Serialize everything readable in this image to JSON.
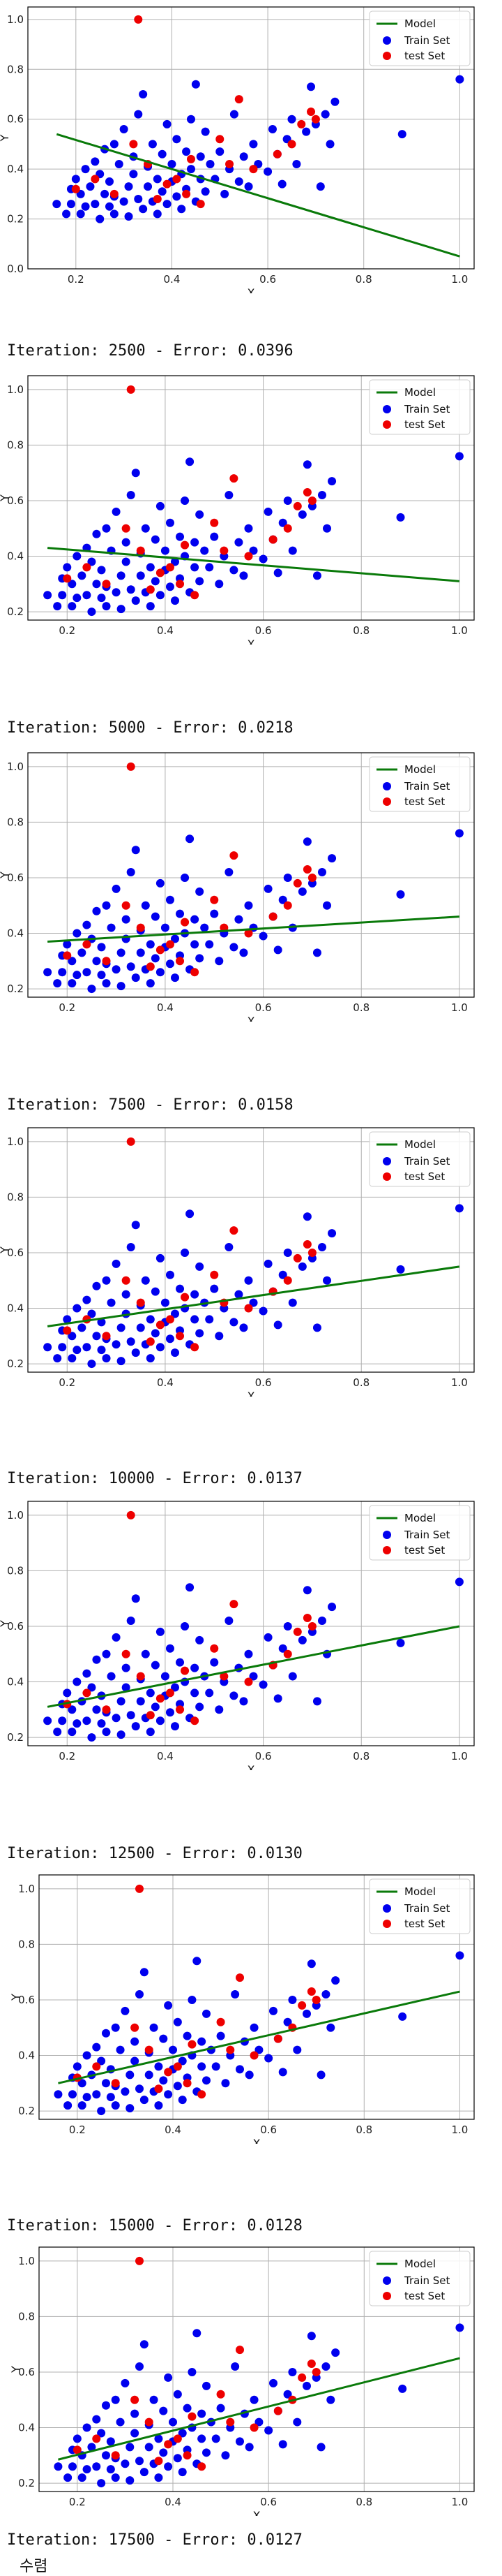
{
  "chart_data": [
    {
      "type": "scatter",
      "xlabel": "X",
      "ylabel": "Y",
      "xlim": [
        0.1,
        1.03
      ],
      "ylim": [
        0.0,
        1.05
      ],
      "xticks": [
        0.2,
        0.4,
        0.6,
        0.8,
        1.0
      ],
      "yticks": [
        0.0,
        0.2,
        0.4,
        0.6,
        0.8,
        1.0
      ],
      "model_line": {
        "x": [
          0.16,
          1.0
        ],
        "y": [
          0.54,
          0.05
        ]
      },
      "caption": "Iteration: 2500 - Error: 0.0396"
    },
    {
      "type": "scatter",
      "xlabel": "X",
      "ylabel": "Y",
      "xlim": [
        0.12,
        1.03
      ],
      "ylim": [
        0.17,
        1.05
      ],
      "xticks": [
        0.2,
        0.4,
        0.6,
        0.8,
        1.0
      ],
      "yticks": [
        0.2,
        0.4,
        0.6,
        0.8,
        1.0
      ],
      "model_line": {
        "x": [
          0.16,
          1.0
        ],
        "y": [
          0.43,
          0.31
        ]
      },
      "caption": "Iteration: 5000 - Error: 0.0218"
    },
    {
      "type": "scatter",
      "xlabel": "X",
      "ylabel": "Y",
      "xlim": [
        0.12,
        1.03
      ],
      "ylim": [
        0.17,
        1.05
      ],
      "xticks": [
        0.2,
        0.4,
        0.6,
        0.8,
        1.0
      ],
      "yticks": [
        0.2,
        0.4,
        0.6,
        0.8,
        1.0
      ],
      "model_line": {
        "x": [
          0.16,
          1.0
        ],
        "y": [
          0.37,
          0.46
        ]
      },
      "caption": "Iteration: 7500 - Error: 0.0158"
    },
    {
      "type": "scatter",
      "xlabel": "X",
      "ylabel": "Y",
      "xlim": [
        0.12,
        1.03
      ],
      "ylim": [
        0.17,
        1.05
      ],
      "xticks": [
        0.2,
        0.4,
        0.6,
        0.8,
        1.0
      ],
      "yticks": [
        0.2,
        0.4,
        0.6,
        0.8,
        1.0
      ],
      "model_line": {
        "x": [
          0.16,
          1.0
        ],
        "y": [
          0.335,
          0.55
        ]
      },
      "caption": "Iteration: 10000 - Error: 0.0137"
    },
    {
      "type": "scatter",
      "xlabel": "X",
      "ylabel": "Y",
      "xlim": [
        0.12,
        1.03
      ],
      "ylim": [
        0.17,
        1.05
      ],
      "xticks": [
        0.2,
        0.4,
        0.6,
        0.8,
        1.0
      ],
      "yticks": [
        0.2,
        0.4,
        0.6,
        0.8,
        1.0
      ],
      "model_line": {
        "x": [
          0.16,
          1.0
        ],
        "y": [
          0.31,
          0.6
        ]
      },
      "caption": "Iteration: 12500 - Error: 0.0130"
    },
    {
      "type": "scatter",
      "xlabel": "X",
      "ylabel": "Y",
      "xlim": [
        0.12,
        1.03
      ],
      "ylim": [
        0.17,
        1.05
      ],
      "xticks": [
        0.2,
        0.4,
        0.6,
        0.8,
        1.0
      ],
      "yticks": [
        0.2,
        0.4,
        0.6,
        0.8,
        1.0
      ],
      "model_line": {
        "x": [
          0.16,
          1.0
        ],
        "y": [
          0.3,
          0.63
        ]
      },
      "caption": "Iteration: 15000 - Error: 0.0128"
    },
    {
      "type": "scatter",
      "xlabel": "X",
      "ylabel": "Y",
      "xlim": [
        0.12,
        1.03
      ],
      "ylim": [
        0.17,
        1.05
      ],
      "xticks": [
        0.2,
        0.4,
        0.6,
        0.8,
        1.0
      ],
      "yticks": [
        0.2,
        0.4,
        0.6,
        0.8,
        1.0
      ],
      "model_line": {
        "x": [
          0.16,
          1.0
        ],
        "y": [
          0.285,
          0.65
        ]
      },
      "caption": "Iteration: 17500 - Error: 0.0127"
    }
  ],
  "legend": {
    "model": "Model",
    "train": "Train Set",
    "test": "test Set"
  },
  "colors": {
    "model": "#0a7a0a",
    "train": "#0000ee",
    "test": "#ee0000",
    "grid": "#b0b0b0"
  },
  "train_points": [
    [
      0.16,
      0.26
    ],
    [
      0.18,
      0.22
    ],
    [
      0.19,
      0.26
    ],
    [
      0.19,
      0.32
    ],
    [
      0.2,
      0.36
    ],
    [
      0.21,
      0.22
    ],
    [
      0.21,
      0.3
    ],
    [
      0.22,
      0.4
    ],
    [
      0.22,
      0.25
    ],
    [
      0.23,
      0.33
    ],
    [
      0.24,
      0.26
    ],
    [
      0.24,
      0.43
    ],
    [
      0.25,
      0.2
    ],
    [
      0.25,
      0.38
    ],
    [
      0.26,
      0.3
    ],
    [
      0.26,
      0.48
    ],
    [
      0.27,
      0.25
    ],
    [
      0.27,
      0.35
    ],
    [
      0.28,
      0.22
    ],
    [
      0.28,
      0.5
    ],
    [
      0.28,
      0.29
    ],
    [
      0.29,
      0.42
    ],
    [
      0.3,
      0.27
    ],
    [
      0.3,
      0.56
    ],
    [
      0.31,
      0.33
    ],
    [
      0.31,
      0.21
    ],
    [
      0.32,
      0.38
    ],
    [
      0.32,
      0.45
    ],
    [
      0.33,
      0.28
    ],
    [
      0.33,
      0.62
    ],
    [
      0.34,
      0.24
    ],
    [
      0.34,
      0.7
    ],
    [
      0.35,
      0.33
    ],
    [
      0.35,
      0.41
    ],
    [
      0.36,
      0.27
    ],
    [
      0.36,
      0.5
    ],
    [
      0.37,
      0.36
    ],
    [
      0.37,
      0.22
    ],
    [
      0.38,
      0.31
    ],
    [
      0.38,
      0.46
    ],
    [
      0.39,
      0.58
    ],
    [
      0.39,
      0.26
    ],
    [
      0.4,
      0.35
    ],
    [
      0.4,
      0.42
    ],
    [
      0.41,
      0.29
    ],
    [
      0.41,
      0.52
    ],
    [
      0.42,
      0.38
    ],
    [
      0.42,
      0.24
    ],
    [
      0.43,
      0.47
    ],
    [
      0.43,
      0.32
    ],
    [
      0.44,
      0.6
    ],
    [
      0.44,
      0.4
    ],
    [
      0.45,
      0.27
    ],
    [
      0.45,
      0.74
    ],
    [
      0.46,
      0.36
    ],
    [
      0.46,
      0.45
    ],
    [
      0.47,
      0.31
    ],
    [
      0.47,
      0.55
    ],
    [
      0.48,
      0.42
    ],
    [
      0.49,
      0.36
    ],
    [
      0.5,
      0.47
    ],
    [
      0.51,
      0.3
    ],
    [
      0.52,
      0.4
    ],
    [
      0.53,
      0.62
    ],
    [
      0.54,
      0.35
    ],
    [
      0.55,
      0.45
    ],
    [
      0.56,
      0.33
    ],
    [
      0.57,
      0.5
    ],
    [
      0.58,
      0.42
    ],
    [
      0.6,
      0.39
    ],
    [
      0.61,
      0.56
    ],
    [
      0.62,
      0.46
    ],
    [
      0.63,
      0.34
    ],
    [
      0.64,
      0.52
    ],
    [
      0.65,
      0.6
    ],
    [
      0.66,
      0.42
    ],
    [
      0.68,
      0.55
    ],
    [
      0.69,
      0.73
    ],
    [
      0.7,
      0.58
    ],
    [
      0.71,
      0.33
    ],
    [
      0.72,
      0.62
    ],
    [
      0.73,
      0.5
    ],
    [
      0.74,
      0.67
    ],
    [
      0.88,
      0.54
    ],
    [
      1.0,
      0.76
    ]
  ],
  "test_points": [
    [
      0.2,
      0.32
    ],
    [
      0.24,
      0.36
    ],
    [
      0.28,
      0.3
    ],
    [
      0.32,
      0.5
    ],
    [
      0.33,
      1.0
    ],
    [
      0.35,
      0.42
    ],
    [
      0.37,
      0.28
    ],
    [
      0.39,
      0.34
    ],
    [
      0.41,
      0.36
    ],
    [
      0.43,
      0.3
    ],
    [
      0.44,
      0.44
    ],
    [
      0.46,
      0.26
    ],
    [
      0.5,
      0.52
    ],
    [
      0.52,
      0.42
    ],
    [
      0.54,
      0.68
    ],
    [
      0.57,
      0.4
    ],
    [
      0.62,
      0.46
    ],
    [
      0.65,
      0.5
    ],
    [
      0.67,
      0.58
    ],
    [
      0.69,
      0.63
    ],
    [
      0.7,
      0.6
    ]
  ],
  "footer": "수렴"
}
